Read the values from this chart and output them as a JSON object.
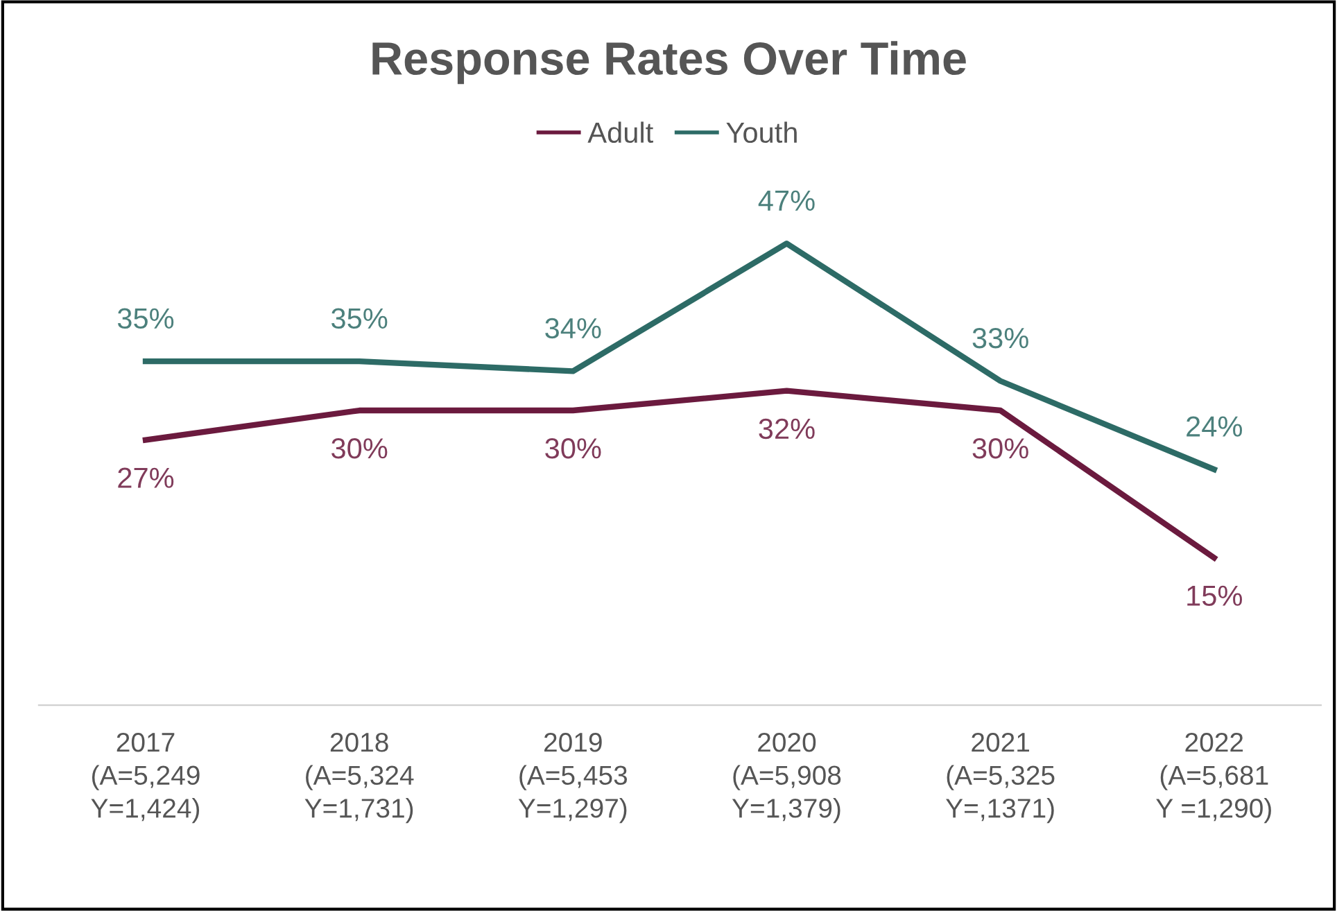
{
  "chart_data": {
    "type": "line",
    "title": "Response Rates Over Time",
    "categories": [
      "2017\n(A=5,249\nY=1,424)",
      "2018\n(A=5,324\nY=1,731)",
      "2019\n(A=5,453\nY=1,297)",
      "2020\n(A=5,908\nY=1,379)",
      "2021\n(A=5,325\nY=,1371)",
      "2022\n(A=5,681\nY =1,290)"
    ],
    "series": [
      {
        "name": "Adult",
        "color": "#6b1a3e",
        "values": [
          27,
          30,
          30,
          32,
          30,
          15
        ],
        "value_labels": [
          "27%",
          "30%",
          "30%",
          "32%",
          "30%",
          "15%"
        ]
      },
      {
        "name": "Youth",
        "color": "#2d6b66",
        "values": [
          35,
          35,
          34,
          47,
          33,
          24
        ],
        "value_labels": [
          "35%",
          "35%",
          "34%",
          "47%",
          "33%",
          "24%"
        ]
      }
    ],
    "legend": "top",
    "grid": false,
    "marker": "none",
    "line_style": "solid"
  }
}
